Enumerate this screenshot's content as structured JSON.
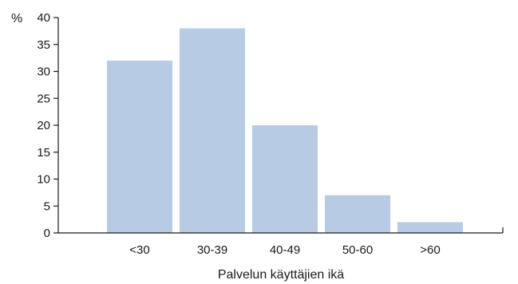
{
  "chart_data": {
    "type": "bar",
    "categories": [
      "<30",
      "30-39",
      "40-49",
      "50-60",
      ">60"
    ],
    "values": [
      32,
      38,
      20,
      7,
      2
    ],
    "ylabel": "%",
    "xlabel": "Palvelun käyttäjien ikä",
    "ylim": [
      0,
      40
    ],
    "yticks": [
      0,
      5,
      10,
      15,
      20,
      25,
      30,
      35,
      40
    ],
    "bar_color": "#b8cbe4",
    "grid": false
  }
}
